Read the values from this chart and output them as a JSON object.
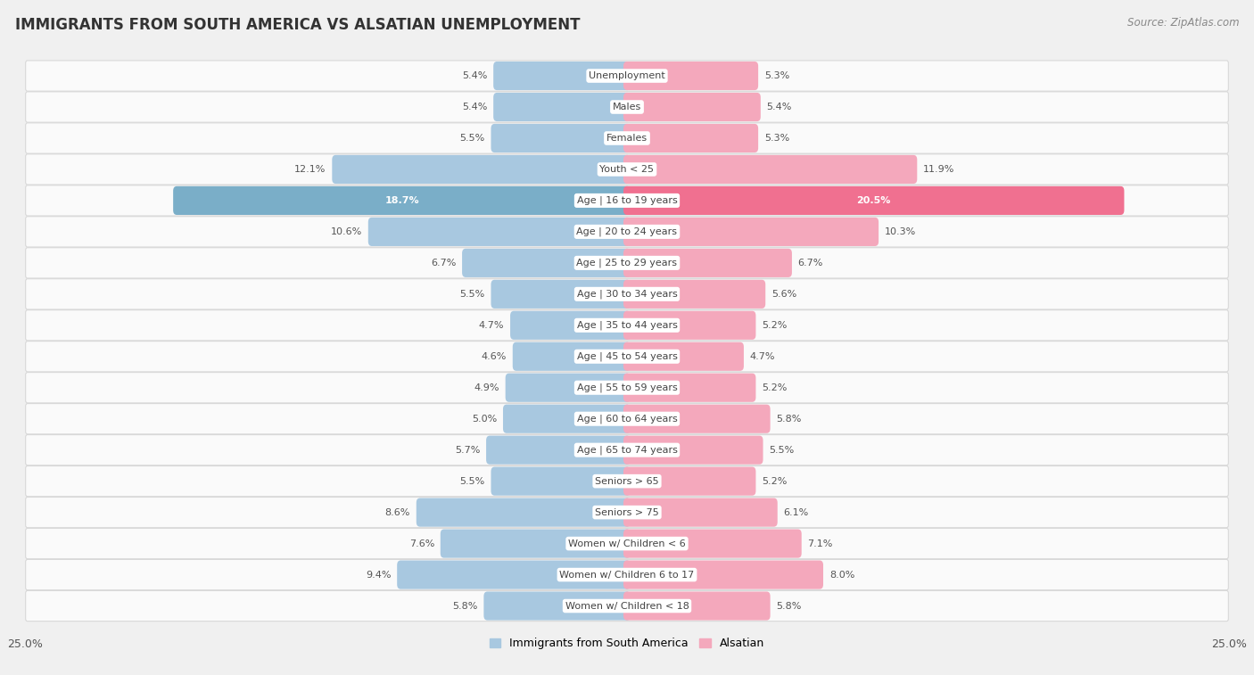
{
  "title": "IMMIGRANTS FROM SOUTH AMERICA VS ALSATIAN UNEMPLOYMENT",
  "source": "Source: ZipAtlas.com",
  "categories": [
    "Unemployment",
    "Males",
    "Females",
    "Youth < 25",
    "Age | 16 to 19 years",
    "Age | 20 to 24 years",
    "Age | 25 to 29 years",
    "Age | 30 to 34 years",
    "Age | 35 to 44 years",
    "Age | 45 to 54 years",
    "Age | 55 to 59 years",
    "Age | 60 to 64 years",
    "Age | 65 to 74 years",
    "Seniors > 65",
    "Seniors > 75",
    "Women w/ Children < 6",
    "Women w/ Children 6 to 17",
    "Women w/ Children < 18"
  ],
  "left_values": [
    5.4,
    5.4,
    5.5,
    12.1,
    18.7,
    10.6,
    6.7,
    5.5,
    4.7,
    4.6,
    4.9,
    5.0,
    5.7,
    5.5,
    8.6,
    7.6,
    9.4,
    5.8
  ],
  "right_values": [
    5.3,
    5.4,
    5.3,
    11.9,
    20.5,
    10.3,
    6.7,
    5.6,
    5.2,
    4.7,
    5.2,
    5.8,
    5.5,
    5.2,
    6.1,
    7.1,
    8.0,
    5.8
  ],
  "left_color": "#a8c8e0",
  "right_color": "#f4a8bc",
  "highlight_left_color": "#7aaec8",
  "highlight_right_color": "#f07090",
  "axis_max": 25.0,
  "bg_color": "#f0f0f0",
  "row_bg_color": "#fafafa",
  "row_border_color": "#d8d8d8",
  "legend_left": "Immigrants from South America",
  "legend_right": "Alsatian",
  "title_fontsize": 12,
  "label_fontsize": 8.0,
  "value_fontsize": 8.0
}
